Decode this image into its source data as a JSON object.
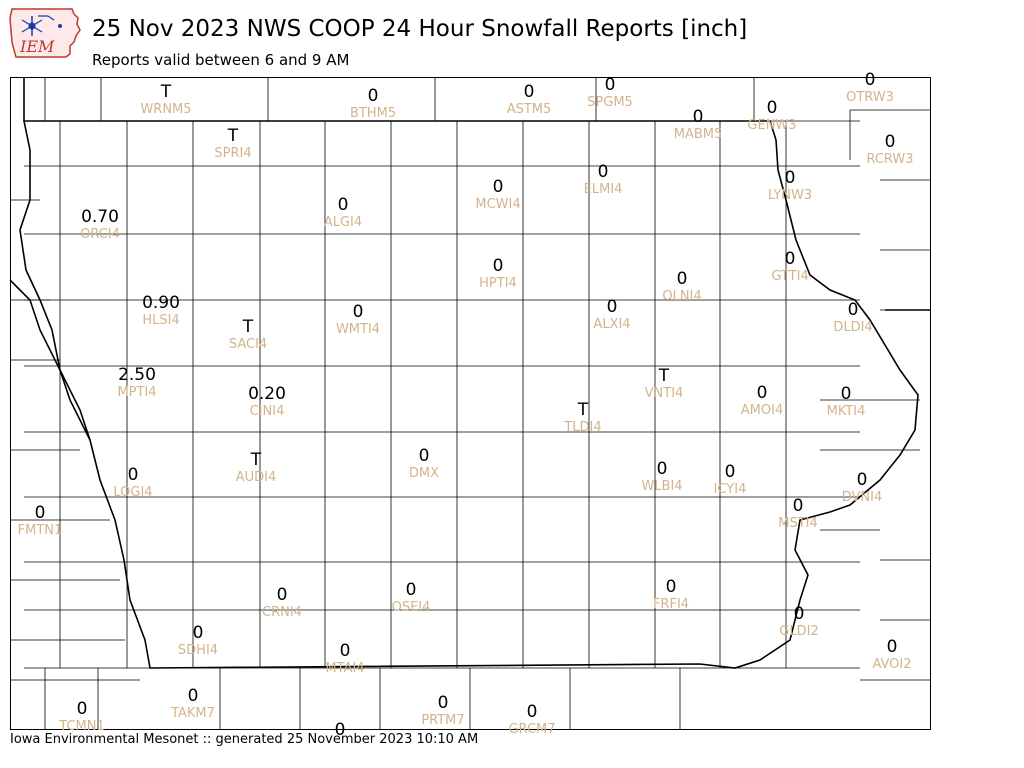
{
  "header": {
    "logo_text": "IEM",
    "title": "25 Nov 2023 NWS COOP 24 Hour Snowfall Reports [inch]",
    "subtitle": "Reports valid between 6 and 9 AM"
  },
  "footer": {
    "text": "Iowa Environmental Mesonet :: generated 25 November 2023 10:10 AM"
  },
  "colors": {
    "value": "#000000",
    "station": "#d2b48c",
    "county_line": "#000000",
    "background": "#ffffff",
    "logo": "#c0392b"
  },
  "stations": [
    {
      "id": "WRNM5",
      "value": "T"
    },
    {
      "id": "BTHM5",
      "value": "0"
    },
    {
      "id": "ASTM5",
      "value": "0"
    },
    {
      "id": "SPGM5",
      "value": "0"
    },
    {
      "id": "OTRW3",
      "value": "0"
    },
    {
      "id": "MABM5",
      "value": "0"
    },
    {
      "id": "GENW3",
      "value": "0"
    },
    {
      "id": "SPRI4",
      "value": "T"
    },
    {
      "id": "RCRW3",
      "value": "0"
    },
    {
      "id": "ELMI4",
      "value": "0"
    },
    {
      "id": "MCWI4",
      "value": "0"
    },
    {
      "id": "LYNW3",
      "value": "0"
    },
    {
      "id": "ORCI4",
      "value": "0.70"
    },
    {
      "id": "ALGI4",
      "value": "0"
    },
    {
      "id": "HPTI4",
      "value": "0"
    },
    {
      "id": "GTTI4",
      "value": "0"
    },
    {
      "id": "OLNI4",
      "value": "0"
    },
    {
      "id": "HLSI4",
      "value": "0.90"
    },
    {
      "id": "ALXI4",
      "value": "0"
    },
    {
      "id": "WMTI4",
      "value": "0"
    },
    {
      "id": "DLDI4",
      "value": "0"
    },
    {
      "id": "SACI4",
      "value": "T"
    },
    {
      "id": "VNTI4",
      "value": "T"
    },
    {
      "id": "MPTI4",
      "value": "2.50"
    },
    {
      "id": "CINI4",
      "value": "0.20"
    },
    {
      "id": "AMOI4",
      "value": "0"
    },
    {
      "id": "MKTI4",
      "value": "0"
    },
    {
      "id": "TLDI4",
      "value": "T"
    },
    {
      "id": "DMX",
      "value": "0"
    },
    {
      "id": "AUDI4",
      "value": "T"
    },
    {
      "id": "LOGI4",
      "value": "0"
    },
    {
      "id": "WLBI4",
      "value": "0"
    },
    {
      "id": "ICYI4",
      "value": "0"
    },
    {
      "id": "DVNI4",
      "value": "0"
    },
    {
      "id": "FMTN1",
      "value": "0"
    },
    {
      "id": "MSTI4",
      "value": "0"
    },
    {
      "id": "CRNI4",
      "value": "0"
    },
    {
      "id": "OSEI4",
      "value": "0"
    },
    {
      "id": "FRFI4",
      "value": "0"
    },
    {
      "id": "GLDI2",
      "value": "0"
    },
    {
      "id": "SDHI4",
      "value": "0"
    },
    {
      "id": "MTAI4",
      "value": "0"
    },
    {
      "id": "AVOI2",
      "value": "0"
    },
    {
      "id": "TAKM7",
      "value": "0"
    },
    {
      "id": "PRTM7",
      "value": "0"
    },
    {
      "id": "TCMN1",
      "value": "0"
    },
    {
      "id": "GRCM7",
      "value": "0"
    },
    {
      "id": "",
      "value": "0"
    }
  ]
}
